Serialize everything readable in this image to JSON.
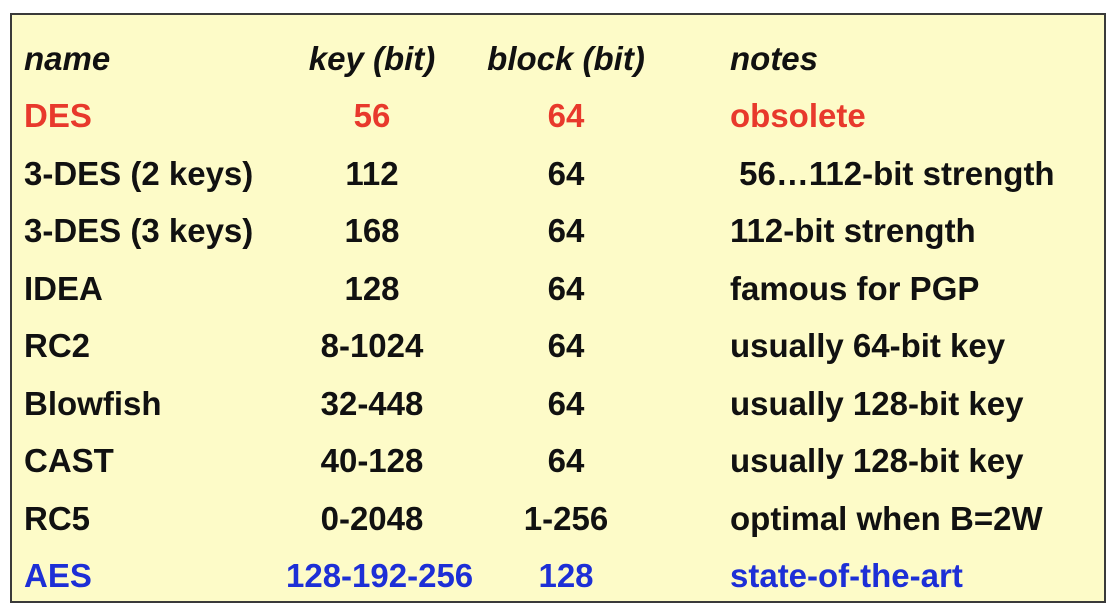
{
  "headers": {
    "name": "name",
    "key": "key (bit)",
    "block": "block (bit)",
    "notes": "notes"
  },
  "colors": {
    "background": "#fdfbc8",
    "text": "#111111",
    "des_highlight": "#e8392c",
    "aes_highlight": "#1d2fd6"
  },
  "rows": [
    {
      "name": "DES",
      "key": "56",
      "block": "64",
      "notes": "obsolete"
    },
    {
      "name": "3-DES (2 keys)",
      "key": "112",
      "block": "64",
      "notes": " 56…112-bit strength"
    },
    {
      "name": "3-DES (3 keys)",
      "key": "168",
      "block": "64",
      "notes": "112-bit strength"
    },
    {
      "name": "IDEA",
      "key": "128",
      "block": "64",
      "notes": "famous for PGP"
    },
    {
      "name": "RC2",
      "key": "8-1024",
      "block": "64",
      "notes": "usually 64-bit key"
    },
    {
      "name": "Blowfish",
      "key": "32-448",
      "block": "64",
      "notes": "usually 128-bit key"
    },
    {
      "name": "CAST",
      "key": "40-128",
      "block": "64",
      "notes": "usually 128-bit key"
    },
    {
      "name": "RC5",
      "key": "0-2048",
      "block": "1-256",
      "notes": "optimal when B=2W"
    },
    {
      "name": "AES",
      "key": "128-192-256",
      "block": "128",
      "notes": "state-of-the-art"
    }
  ]
}
